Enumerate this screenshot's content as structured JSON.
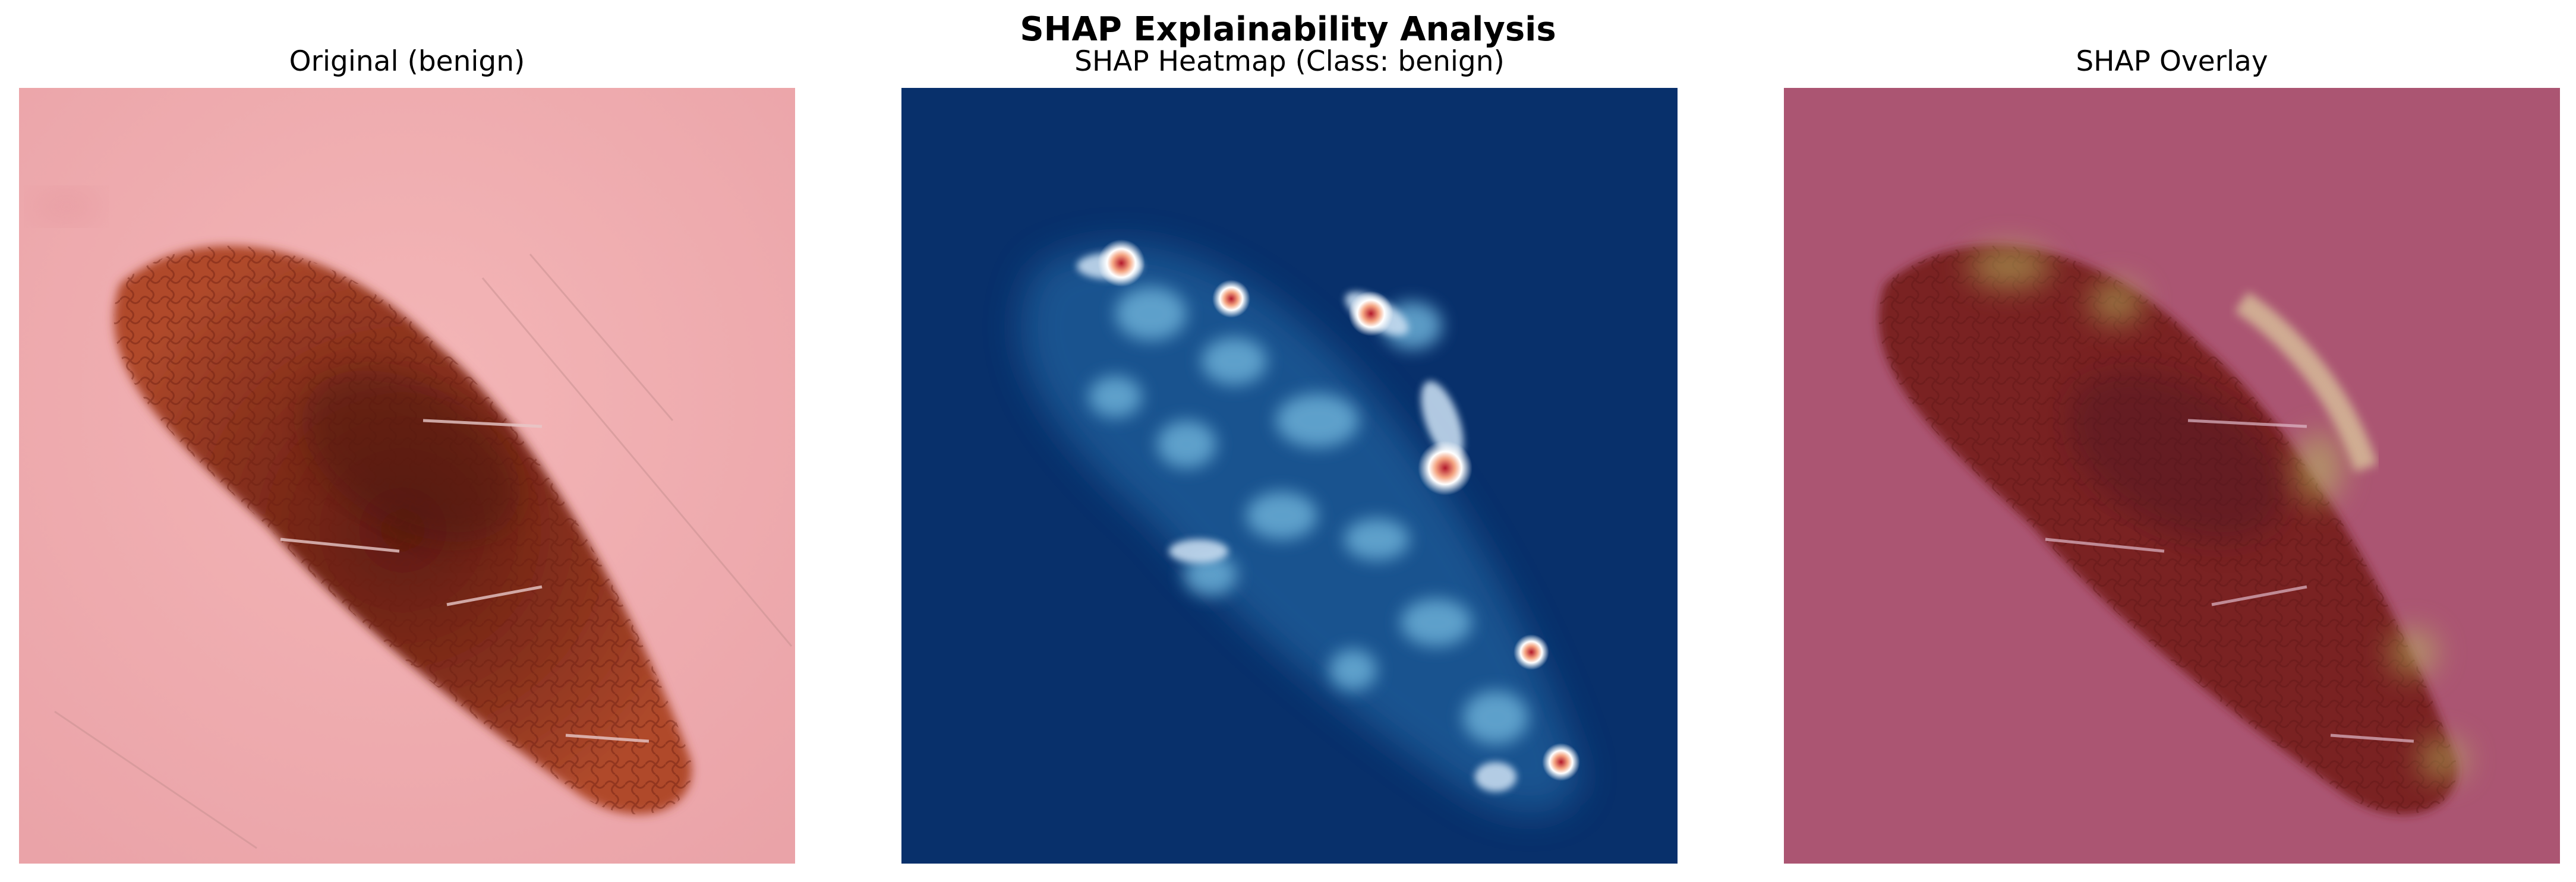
{
  "figure": {
    "title": "SHAP Explainability Analysis"
  },
  "panels": [
    {
      "title": "Original (benign)",
      "kind": "image"
    },
    {
      "title": "SHAP Heatmap (Class: benign)",
      "kind": "heatmap",
      "colormap": "blue-white-red"
    },
    {
      "title": "SHAP Overlay",
      "kind": "image-overlay"
    }
  ],
  "colors": {
    "skin": "#efa9ad",
    "lesion": "#8e2a19",
    "heatmap_background": "#08306b",
    "heatmap_high": "#b2182b",
    "overlay_tint": "#a8506e"
  }
}
